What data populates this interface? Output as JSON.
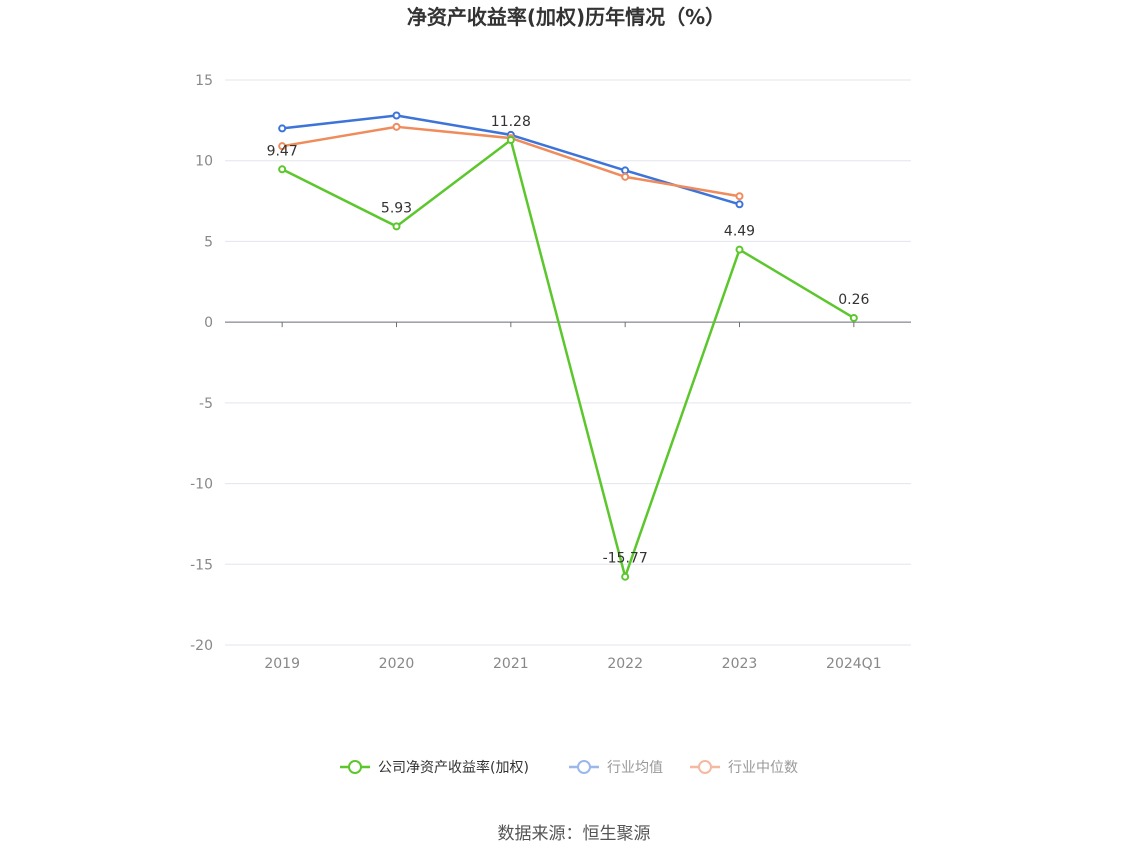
{
  "chart_data": {
    "type": "line",
    "title": "净资产收益率(加权)历年情况（%）",
    "categories": [
      "2019",
      "2020",
      "2021",
      "2022",
      "2023",
      "2024Q1"
    ],
    "ylim": [
      -20,
      15
    ],
    "yticks": [
      15,
      10,
      5,
      0,
      -5,
      -10,
      -15,
      -20
    ],
    "grid": true,
    "legend_position": "bottom",
    "series": [
      {
        "name": "公司净资产收益率(加权)",
        "color": "#5cc72d",
        "values": [
          9.47,
          5.93,
          11.28,
          -15.77,
          4.49,
          0.26
        ],
        "labels": [
          "9.47",
          "5.93",
          "11.28",
          "-15.77",
          "4.49",
          "0.26"
        ]
      },
      {
        "name": "行业均值",
        "color": "#3d74d9",
        "values": [
          12.0,
          12.8,
          11.6,
          9.4,
          7.3,
          null
        ]
      },
      {
        "name": "行业中位数",
        "color": "#f08b5c",
        "values": [
          10.9,
          12.1,
          11.4,
          9.0,
          7.8,
          null
        ]
      }
    ],
    "legend_colors_faded": [
      "#5cc72d",
      "#9ab8ea",
      "#f4b9a0"
    ],
    "source": "数据来源：恒生聚源"
  }
}
